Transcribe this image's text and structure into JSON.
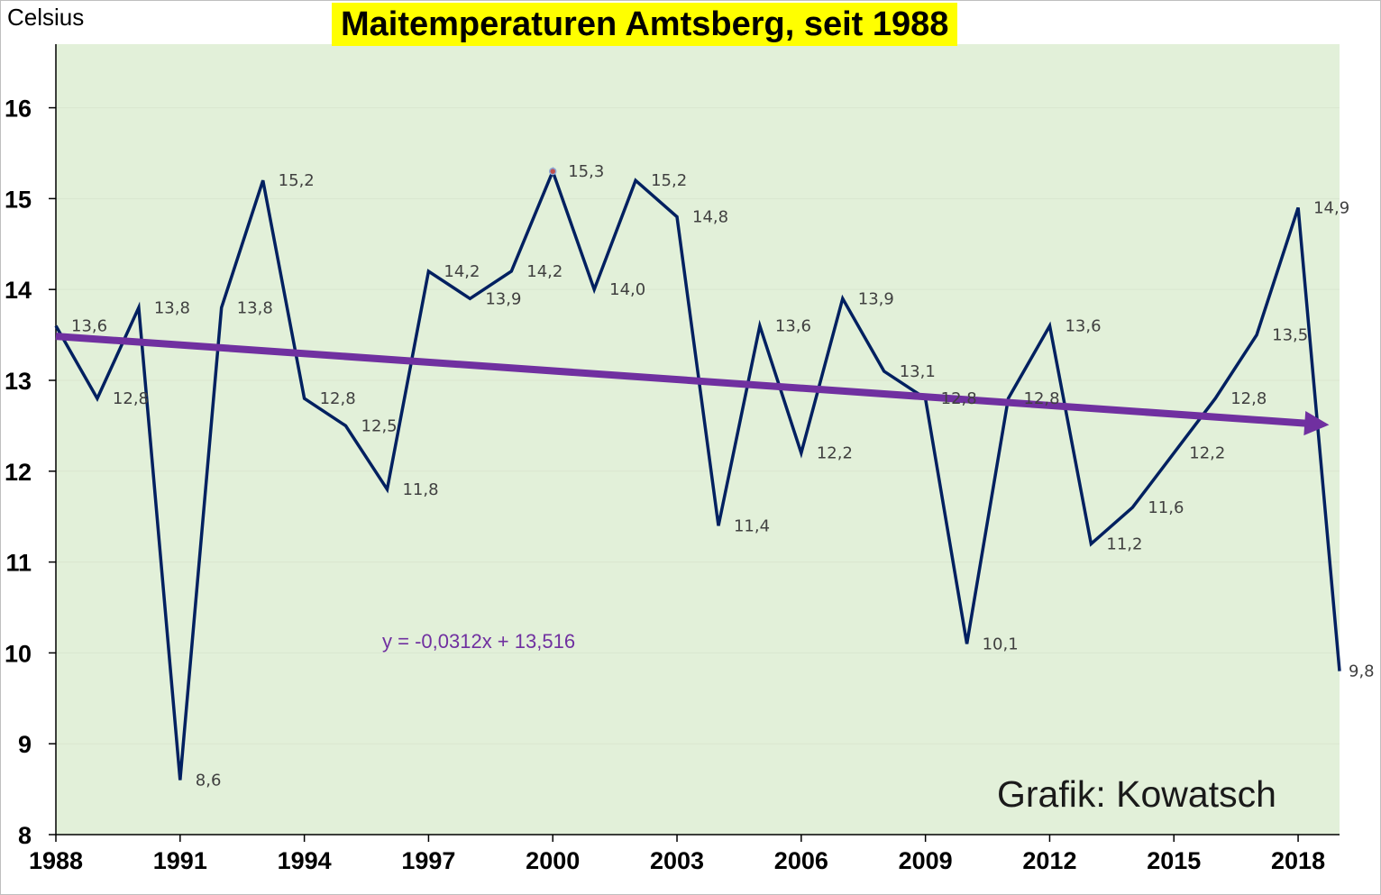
{
  "title": "Maitemperaturen Amtsberg, seit 1988",
  "ylabel": "Celsius",
  "credit": "Grafik: Kowatsch",
  "colors": {
    "plot_bg": "#e2f0d9",
    "line": "#002060",
    "trend": "#7030a0",
    "title_bg": "#ffff00",
    "grid": "#d9e6cf",
    "highlight_marker": "#c0504d"
  },
  "chart_data": {
    "type": "line",
    "title": "Maitemperaturen Amtsberg, seit 1988",
    "ylabel": "Celsius",
    "xlabel": "",
    "xlim": [
      1988,
      2019
    ],
    "ylim": [
      8,
      16.7
    ],
    "x_ticks": [
      1988,
      1991,
      1994,
      1997,
      2000,
      2003,
      2006,
      2009,
      2012,
      2015,
      2018
    ],
    "y_ticks": [
      8,
      9,
      10,
      11,
      12,
      13,
      14,
      15,
      16
    ],
    "grid": "horizontal",
    "series": [
      {
        "x": [
          1988,
          1989,
          1990,
          1991,
          1992,
          1993,
          1994,
          1995,
          1996,
          1997,
          1998,
          1999,
          2000,
          2001,
          2002,
          2003,
          2004,
          2005,
          2006,
          2007,
          2008,
          2009,
          2010,
          2011,
          2012,
          2013,
          2014,
          2015,
          2016,
          2017,
          2018,
          2019
        ],
        "values": [
          13.6,
          12.8,
          13.8,
          8.6,
          13.8,
          15.2,
          12.8,
          12.5,
          11.8,
          14.2,
          13.9,
          14.2,
          15.3,
          14.0,
          15.2,
          14.8,
          11.4,
          13.6,
          12.2,
          13.9,
          13.1,
          12.8,
          10.1,
          12.8,
          13.6,
          11.2,
          11.6,
          12.2,
          12.8,
          13.5,
          14.9,
          9.8
        ],
        "labels": [
          "13,6",
          "12,8",
          "13,8",
          "8,6",
          "13,8",
          "15,2",
          "12,8",
          "12,5",
          "11,8",
          "14,2",
          "13,9",
          "14,2",
          "15,3",
          "14,0",
          "15,2",
          "14,8",
          "11,4",
          "13,6",
          "12,2",
          "13,9",
          "13,1",
          "12,8",
          "10,1",
          "12,8",
          "13,6",
          "11,2",
          "11,6",
          "12,2",
          "12,8",
          "13,5",
          "14,9",
          "9,8"
        ],
        "highlight_x": 2000
      }
    ],
    "trendline": {
      "equation": "y = -0,0312x + 13,516",
      "slope": -0.0312,
      "intercept": 13.516,
      "x_start": 1988,
      "x_end": 2019
    }
  }
}
